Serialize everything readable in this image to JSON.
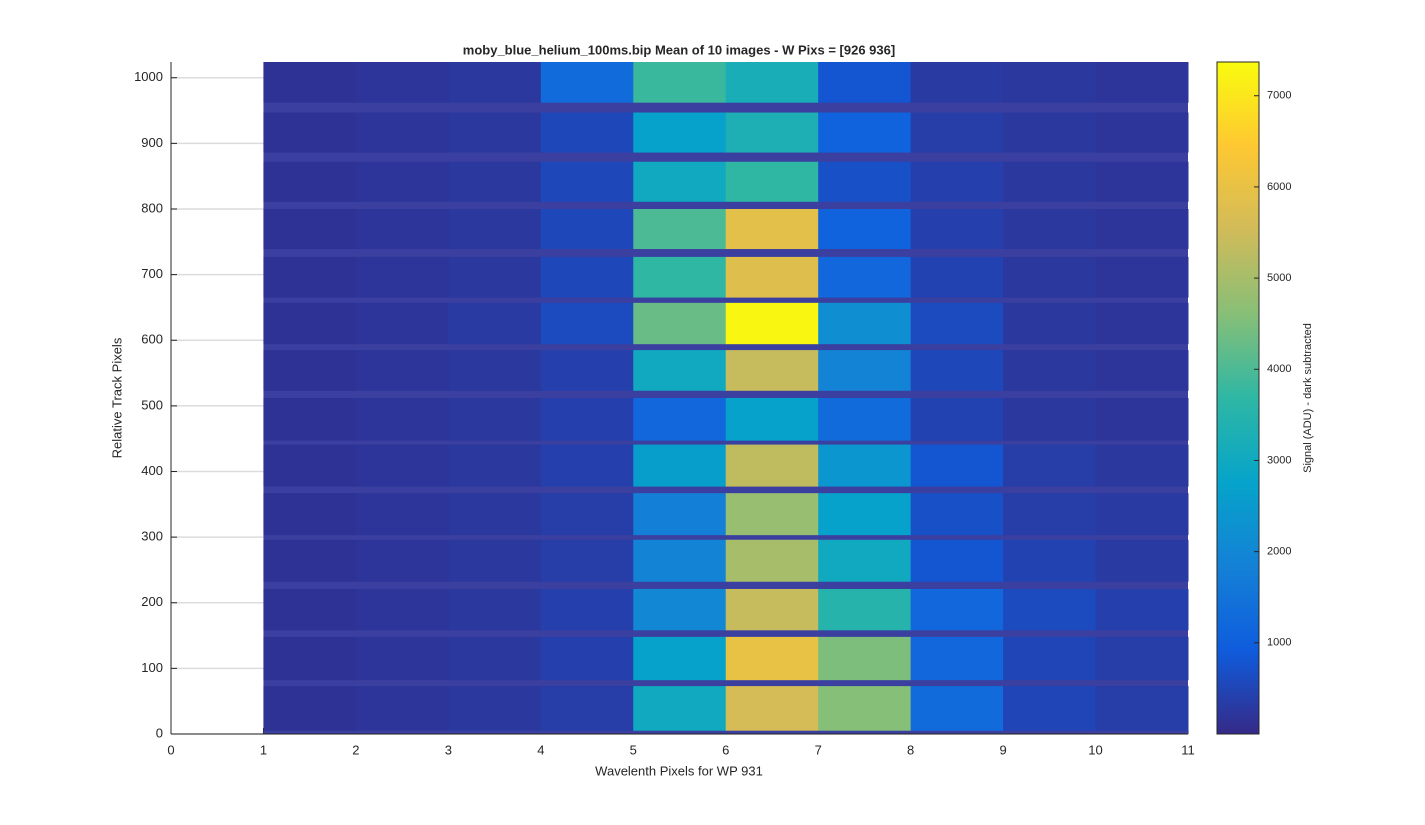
{
  "chart_data": {
    "type": "heatmap",
    "title": "moby_blue_helium_100ms.bip  Mean of 10 images - W Pixs = [926  936]",
    "x_label": "Wavelenth Pixels for WP 931",
    "y_label": "Relative Track Pixels",
    "colorbar_label": "Signal (ADU) - dark subtracted",
    "xlim": [
      0,
      11
    ],
    "xticks": [
      0,
      1,
      2,
      3,
      4,
      5,
      6,
      7,
      8,
      9,
      10,
      11
    ],
    "ylim": [
      0,
      1024
    ],
    "yticks": [
      0,
      100,
      200,
      300,
      400,
      500,
      600,
      700,
      800,
      900,
      1000
    ],
    "grid": true,
    "clim": [
      0,
      7370
    ],
    "cticks": [
      1000,
      2000,
      3000,
      4000,
      5000,
      6000,
      7000
    ],
    "colormap": [
      "#352a87",
      "#0f5cdd",
      "#1481d6",
      "#06a4ca",
      "#2eb7a4",
      "#87bf77",
      "#d1bb59",
      "#fec832",
      "#f9fb0e"
    ],
    "background": "#3b3f9f",
    "x_edges": [
      1,
      2,
      3,
      4,
      5,
      6,
      7,
      8,
      9,
      10,
      11
    ],
    "y_ranges": [
      [
        5,
        73
      ],
      [
        82,
        148
      ],
      [
        158,
        221
      ],
      [
        232,
        296
      ],
      [
        303,
        367
      ],
      [
        377,
        441
      ],
      [
        447,
        512
      ],
      [
        523,
        585
      ],
      [
        594,
        657
      ],
      [
        665,
        727
      ],
      [
        739,
        800
      ],
      [
        811,
        872
      ],
      [
        886,
        947
      ],
      [
        962,
        1024
      ]
    ],
    "values": [
      [
        150,
        200,
        250,
        350,
        3000,
        5600,
        4600,
        1300,
        500,
        350
      ],
      [
        150,
        200,
        250,
        400,
        2700,
        6000,
        4500,
        1200,
        500,
        350
      ],
      [
        150,
        200,
        250,
        400,
        2000,
        5400,
        3500,
        1200,
        600,
        400
      ],
      [
        150,
        200,
        250,
        350,
        1900,
        5000,
        3000,
        800,
        450,
        300
      ],
      [
        150,
        200,
        250,
        350,
        1800,
        4800,
        2700,
        700,
        350,
        300
      ],
      [
        150,
        200,
        250,
        400,
        2600,
        5300,
        2400,
        800,
        350,
        250
      ],
      [
        150,
        200,
        250,
        400,
        1200,
        2700,
        1300,
        450,
        250,
        200
      ],
      [
        150,
        200,
        250,
        400,
        3000,
        5400,
        1900,
        550,
        250,
        200
      ],
      [
        150,
        200,
        300,
        600,
        4300,
        7300,
        2200,
        600,
        250,
        200
      ],
      [
        150,
        200,
        250,
        550,
        3700,
        5800,
        1200,
        450,
        250,
        200
      ],
      [
        150,
        200,
        250,
        550,
        4000,
        5900,
        1100,
        400,
        250,
        200
      ],
      [
        150,
        200,
        250,
        550,
        3000,
        3700,
        700,
        400,
        250,
        200
      ],
      [
        150,
        200,
        250,
        550,
        2700,
        3300,
        1100,
        350,
        250,
        200
      ],
      [
        150,
        200,
        250,
        1300,
        3800,
        3200,
        800,
        300,
        250,
        200
      ]
    ]
  }
}
